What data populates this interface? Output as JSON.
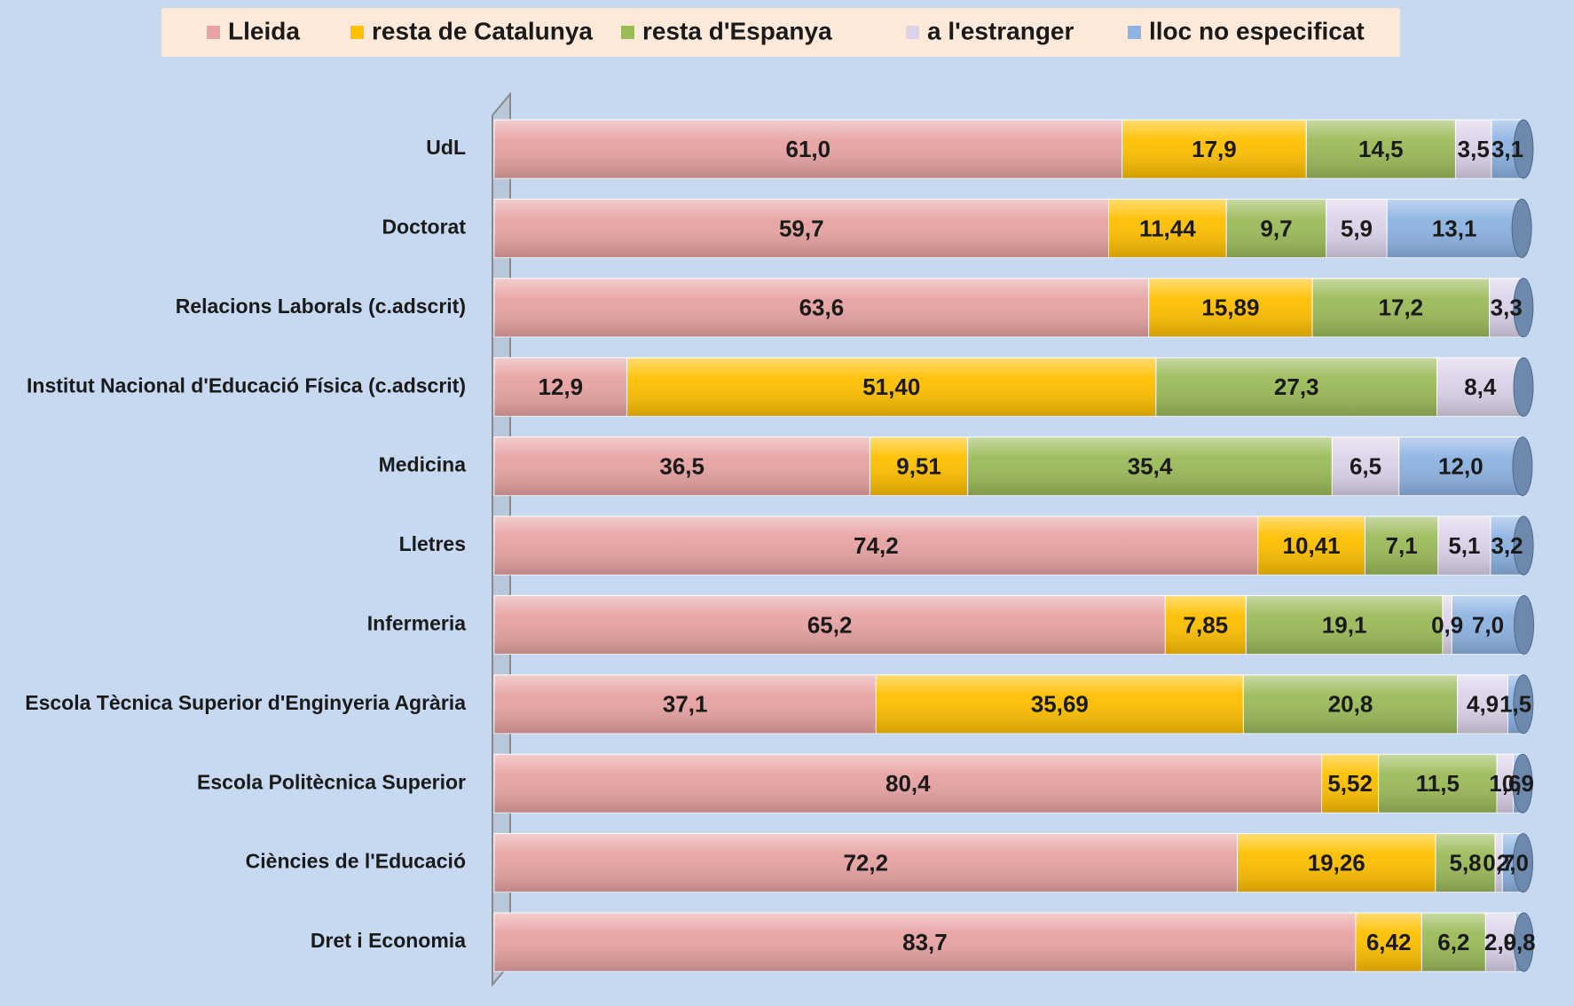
{
  "chart_data": {
    "type": "stacked-bar-horizontal",
    "categories": [
      "UdL",
      "Doctorat",
      "Relacions Laborals (c.adscrit)",
      "Institut Nacional d'Educació Física (c.adscrit)",
      "Medicina",
      "Lletres",
      "Infermeria",
      "Escola Tècnica Superior d'Enginyeria Agrària",
      "Escola Politècnica Superior",
      "Ciències de l'Educació",
      "Dret i Economia"
    ],
    "xlim": [
      0,
      100
    ],
    "legend": "top",
    "series": [
      {
        "name": "Lleida",
        "color": "#e8a3a3",
        "values": [
          61.0,
          59.7,
          63.6,
          12.9,
          36.5,
          74.2,
          65.2,
          37.1,
          80.4,
          72.2,
          83.7
        ],
        "value_labels": [
          "61,0",
          "59,7",
          "63,6",
          "12,9",
          "36,5",
          "74,2",
          "65,2",
          "37,1",
          "80,4",
          "72,2",
          "83,7"
        ]
      },
      {
        "name": "resta de Catalunya",
        "color": "#ffc000",
        "values": [
          17.9,
          11.44,
          15.89,
          51.4,
          9.51,
          10.41,
          7.85,
          35.69,
          5.52,
          19.26,
          6.42
        ],
        "value_labels": [
          "17,9",
          "11,44",
          "15,89",
          "51,40",
          "9,51",
          "10,41",
          "7,85",
          "35,69",
          "5,52",
          "19,26",
          "6,42"
        ]
      },
      {
        "name": "resta d'Espanya",
        "color": "#9bbb59",
        "values": [
          14.5,
          9.7,
          17.2,
          27.3,
          35.4,
          7.1,
          19.1,
          20.8,
          11.5,
          5.8,
          6.2
        ],
        "value_labels": [
          "14,5",
          "9,7",
          "17,2",
          "27,3",
          "35,4",
          "7,1",
          "19,1",
          "20,8",
          "11,5",
          "5,8",
          "6,2"
        ]
      },
      {
        "name": "a l'estranger",
        "color": "#dcd3ea",
        "values": [
          3.5,
          5.9,
          3.3,
          8.4,
          6.5,
          5.1,
          0.9,
          4.9,
          1.6,
          0.7,
          2.9
        ],
        "value_labels": [
          "3,5",
          "5,9",
          "3,3",
          "8,4",
          "6,5",
          "5,1",
          "0,9",
          "4,9",
          "1,6",
          "0,7",
          "2,9"
        ]
      },
      {
        "name": "lloc no especificat",
        "color": "#8db3e2",
        "values": [
          3.1,
          13.1,
          null,
          null,
          12.0,
          3.2,
          7.0,
          1.5,
          0.9,
          2.0,
          0.8
        ],
        "value_labels": [
          "3,1",
          "13,1",
          null,
          null,
          "12,0",
          "3,2",
          "7,0",
          "1,5",
          "0,9",
          "2,0",
          "0,8"
        ]
      }
    ]
  }
}
